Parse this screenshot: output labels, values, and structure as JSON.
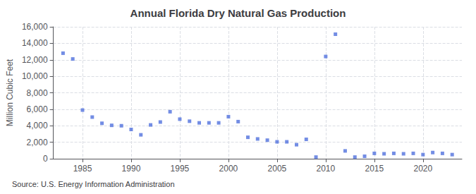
{
  "chart_data": {
    "type": "scatter",
    "title": "Annual Florida Dry Natural Gas Production",
    "ylabel": "Million Cubic Feet",
    "annotations": [
      "Source: U.S. Energy Information Administration"
    ],
    "marker": "square",
    "grid": true,
    "x": [
      1983,
      1984,
      1985,
      1986,
      1987,
      1988,
      1989,
      1990,
      1991,
      1992,
      1993,
      1994,
      1995,
      1996,
      1997,
      1998,
      1999,
      2000,
      2001,
      2002,
      2003,
      2004,
      2005,
      2006,
      2007,
      2008,
      2009,
      2010,
      2011,
      2012,
      2013,
      2014,
      2015,
      2016,
      2017,
      2018,
      2019,
      2020,
      2021,
      2022,
      2023
    ],
    "values": [
      12800,
      12100,
      5900,
      5050,
      4300,
      4050,
      4000,
      3550,
      2900,
      4100,
      4450,
      5700,
      4800,
      4550,
      4350,
      4350,
      4350,
      5100,
      4500,
      2600,
      2400,
      2250,
      2050,
      2050,
      1700,
      2350,
      200,
      12400,
      15100,
      950,
      200,
      300,
      650,
      600,
      650,
      600,
      650,
      500,
      750,
      650,
      500
    ],
    "xlim": [
      1982,
      2024
    ],
    "xticks": [
      1985,
      1990,
      1995,
      2000,
      2005,
      2010,
      2015,
      2020
    ],
    "ylim": [
      0,
      16000
    ],
    "yticks": [
      0,
      {
        "value": 2000,
        "label": "2,000"
      },
      {
        "value": 4000,
        "label": "4,000"
      },
      {
        "value": 6000,
        "label": "6,000"
      },
      {
        "value": 8000,
        "label": "8,000"
      },
      {
        "value": 10000,
        "label": "10,000"
      },
      {
        "value": 12000,
        "label": "12,000"
      },
      {
        "value": 14000,
        "label": "14,000"
      },
      {
        "value": 16000,
        "label": "16,000"
      }
    ]
  }
}
